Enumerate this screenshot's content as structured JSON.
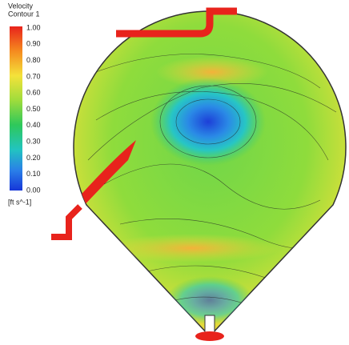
{
  "legend": {
    "title": "Velocity",
    "subtitle": "Contour 1",
    "ticks": [
      "1.00",
      "0.90",
      "0.80",
      "0.70",
      "0.60",
      "0.50",
      "0.40",
      "0.30",
      "0.20",
      "0.10",
      "0.00"
    ],
    "unit": "[ft s^-1]"
  }
}
